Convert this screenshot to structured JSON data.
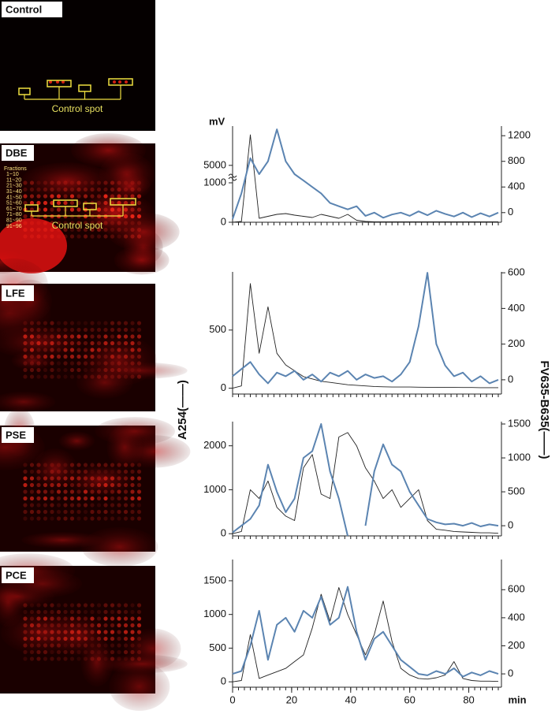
{
  "images": [
    {
      "label": "Control",
      "annotation": "Control spot"
    },
    {
      "label": "DBE",
      "annotation": "Control spot",
      "fractions": [
        "Fractions",
        "1~10",
        "11~20",
        "21~30",
        "31~40",
        "41~50",
        "51~60",
        "61~70",
        "71~80",
        "81~90",
        "91~96"
      ]
    },
    {
      "label": "LFE"
    },
    {
      "label": "PSE"
    },
    {
      "label": "PCE"
    }
  ],
  "figure": {
    "y_label": "A254(——)",
    "y2_label": "FV635-B635(——)"
  },
  "chart_data": [
    {
      "type": "line",
      "y_unit": "mV",
      "xlim": [
        0,
        90
      ],
      "ylim": [
        0,
        14000
      ],
      "yticks": [
        0,
        1000,
        5000
      ],
      "y_break": 1000,
      "y2lim": [
        -150,
        1350
      ],
      "y2ticks": [
        0,
        400,
        800,
        1200
      ],
      "x": [
        0,
        3,
        6,
        9,
        12,
        15,
        18,
        21,
        24,
        27,
        30,
        33,
        36,
        39,
        42,
        45,
        48,
        51,
        54,
        57,
        60,
        63,
        66,
        69,
        72,
        75,
        78,
        81,
        84,
        87,
        90
      ],
      "series": [
        {
          "name": "A254",
          "color": "#222222",
          "values": [
            0,
            20,
            12000,
            100,
            150,
            200,
            220,
            180,
            150,
            120,
            200,
            150,
            100,
            200,
            50,
            20,
            10,
            10,
            10,
            10,
            10,
            10,
            10,
            10,
            10,
            10,
            10,
            10,
            10,
            10,
            10
          ]
        },
        {
          "name": "FV635-B635",
          "color": "#5b84b1",
          "axis": "y2",
          "values": [
            -100,
            300,
            850,
            600,
            800,
            1300,
            800,
            600,
            500,
            400,
            300,
            150,
            100,
            50,
            100,
            -50,
            0,
            -80,
            -30,
            0,
            -50,
            20,
            -40,
            30,
            -20,
            -60,
            0,
            -70,
            -10,
            -60,
            0
          ]
        }
      ]
    },
    {
      "type": "line",
      "xlim": [
        0,
        90
      ],
      "ylim": [
        -50,
        1000
      ],
      "yticks": [
        0,
        500
      ],
      "y2lim": [
        -80,
        605
      ],
      "y2ticks": [
        0,
        200,
        400,
        600
      ],
      "x": [
        0,
        3,
        6,
        9,
        12,
        15,
        18,
        21,
        24,
        27,
        30,
        33,
        36,
        39,
        42,
        45,
        48,
        51,
        54,
        57,
        60,
        63,
        66,
        69,
        72,
        75,
        78,
        81,
        84,
        87,
        90
      ],
      "series": [
        {
          "name": "A254",
          "color": "#222222",
          "values": [
            0,
            20,
            900,
            300,
            700,
            300,
            200,
            150,
            100,
            80,
            60,
            50,
            40,
            30,
            25,
            20,
            15,
            12,
            10,
            10,
            10,
            9,
            8,
            8,
            7,
            7,
            6,
            6,
            5,
            5,
            5
          ]
        },
        {
          "name": "FV635-B635",
          "color": "#5b84b1",
          "axis": "y2",
          "values": [
            20,
            60,
            100,
            30,
            -20,
            40,
            20,
            50,
            0,
            30,
            -10,
            40,
            20,
            50,
            0,
            30,
            10,
            20,
            -10,
            30,
            100,
            300,
            600,
            200,
            80,
            20,
            40,
            -10,
            20,
            -20,
            0
          ]
        }
      ]
    },
    {
      "type": "line",
      "xlim": [
        0,
        90
      ],
      "ylim": [
        -50,
        2550
      ],
      "yticks": [
        0,
        1000,
        2000
      ],
      "y2lim": [
        -150,
        1535
      ],
      "y2ticks": [
        0,
        500,
        1000,
        1500
      ],
      "x": [
        0,
        3,
        6,
        9,
        12,
        15,
        18,
        21,
        24,
        27,
        30,
        33,
        36,
        39,
        42,
        45,
        48,
        51,
        54,
        57,
        60,
        63,
        66,
        69,
        72,
        75,
        78,
        81,
        84,
        87,
        90
      ],
      "series": [
        {
          "name": "A254",
          "color": "#222222",
          "values": [
            0,
            50,
            1000,
            800,
            1200,
            600,
            400,
            300,
            1500,
            1800,
            900,
            800,
            2200,
            2300,
            2000,
            1500,
            1200,
            800,
            1000,
            600,
            800,
            1000,
            300,
            100,
            80,
            50,
            40,
            30,
            20,
            20,
            10
          ]
        },
        {
          "name": "FV635-B635",
          "color": "#5b84b1",
          "axis": "y2",
          "values": [
            -100,
            0,
            100,
            300,
            900,
            500,
            200,
            400,
            1000,
            1100,
            1500,
            800,
            400,
            -150,
            null,
            0,
            800,
            1200,
            900,
            800,
            500,
            300,
            100,
            50,
            20,
            30,
            0,
            40,
            -10,
            20,
            0
          ]
        }
      ]
    },
    {
      "type": "line",
      "x_label": "min",
      "xlim": [
        0,
        90
      ],
      "xticks": [
        0,
        20,
        40,
        60,
        80
      ],
      "ylim": [
        -80,
        1815
      ],
      "yticks": [
        0,
        500,
        1000,
        1500
      ],
      "y2lim": [
        -95,
        815
      ],
      "y2ticks": [
        0,
        200,
        400,
        600
      ],
      "x": [
        0,
        3,
        6,
        9,
        12,
        15,
        18,
        21,
        24,
        27,
        30,
        33,
        36,
        39,
        42,
        45,
        48,
        51,
        54,
        57,
        60,
        63,
        66,
        69,
        72,
        75,
        78,
        81,
        84,
        87,
        90
      ],
      "series": [
        {
          "name": "A254",
          "color": "#222222",
          "values": [
            0,
            20,
            700,
            50,
            100,
            150,
            200,
            300,
            400,
            800,
            1300,
            900,
            1400,
            1000,
            700,
            400,
            700,
            1200,
            600,
            200,
            100,
            50,
            40,
            60,
            100,
            300,
            50,
            20,
            10,
            10,
            5
          ]
        },
        {
          "name": "FV635-B635",
          "color": "#5b84b1",
          "axis": "y2",
          "values": [
            0,
            20,
            200,
            450,
            100,
            350,
            400,
            300,
            450,
            400,
            550,
            350,
            400,
            620,
            300,
            100,
            250,
            300,
            200,
            100,
            50,
            0,
            -10,
            20,
            0,
            40,
            -20,
            10,
            -10,
            20,
            0
          ]
        }
      ]
    }
  ]
}
